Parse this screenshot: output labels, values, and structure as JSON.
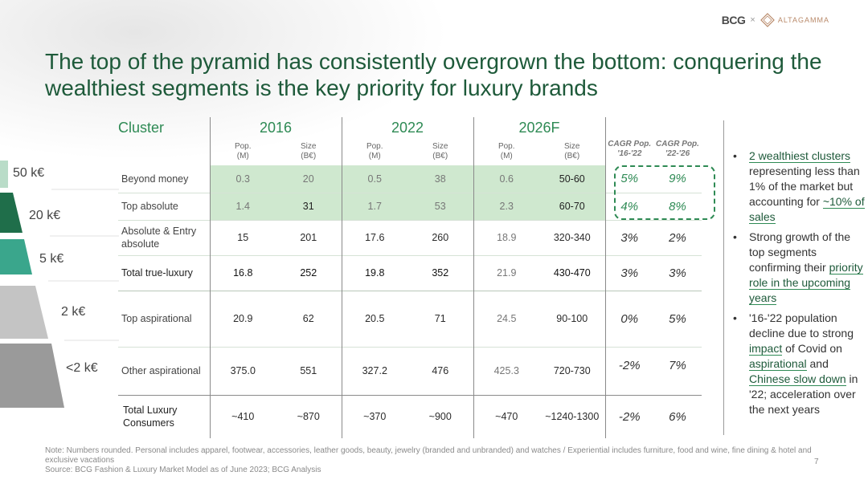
{
  "logos": {
    "bcg": "BCG",
    "times": "×",
    "altagamma": "ALTAGAMMA"
  },
  "title": "The top of the pyramid has consistently overgrown the bottom: conquering the wealthiest segments is the key priority for luxury brands",
  "pyramid": [
    {
      "label": "50 k€",
      "color": "#b9dcc8"
    },
    {
      "label": "20 k€",
      "color": "#1f6e4a"
    },
    {
      "label": "5 k€",
      "color": "#3aa68c"
    },
    {
      "label": "2 k€",
      "color": "#c4c4c4"
    },
    {
      "label": "<2 k€",
      "color": "#9a9a9a"
    }
  ],
  "table": {
    "cluster_header": "Cluster",
    "years": [
      "2016",
      "2022",
      "2026F"
    ],
    "pop_header": "Pop.",
    "pop_unit": "(M)",
    "size_header": "Size",
    "size_unit": "(B€)",
    "cagr1": "CAGR Pop. '16-'22",
    "cagr2": "CAGR Pop. '22-'26",
    "rows": [
      {
        "label": "Beyond money",
        "v": [
          "0.3",
          "20",
          "0.5",
          "38",
          "0.6",
          "50-60"
        ],
        "c1": "5%",
        "c2": "9%"
      },
      {
        "label": "Top absolute",
        "v": [
          "1.4",
          "31",
          "1.7",
          "53",
          "2.3",
          "60-70"
        ],
        "c1": "4%",
        "c2": "8%"
      },
      {
        "label": "Absolute & Entry absolute",
        "v": [
          "15",
          "201",
          "17.6",
          "260",
          "18.9",
          "320-340"
        ],
        "c1": "3%",
        "c2": "2%"
      },
      {
        "label": "Total true-luxury",
        "v": [
          "16.8",
          "252",
          "19.8",
          "352",
          "21.9",
          "430-470"
        ],
        "c1": "3%",
        "c2": "3%"
      },
      {
        "label": "Top aspirational",
        "v": [
          "20.9",
          "62",
          "20.5",
          "71",
          "24.5",
          "90-100"
        ],
        "c1": "0%",
        "c2": "5%"
      },
      {
        "label": "Other aspirational",
        "v": [
          "375.0",
          "551",
          "327.2",
          "476",
          "425.3",
          "720-730"
        ],
        "c1": "-2%",
        "c2": "7%"
      },
      {
        "label": "Total Luxury Consumers",
        "v": [
          "~410",
          "~870",
          "~370",
          "~900",
          "~470",
          "~1240-1300"
        ],
        "c1": "-2%",
        "c2": "6%"
      }
    ]
  },
  "bullets": [
    {
      "a": "2 wealthiest clusters",
      "b": " representing less than 1% of the market but accounting for ",
      "c": "~10% of sales",
      "d": ""
    },
    {
      "a": "Strong growth of the top segments confirming their ",
      "b": "priority role in the upcoming years",
      "c": "",
      "d": ""
    },
    {
      "a": "'16-'22 population decline due to strong ",
      "b": "impact",
      "c": " of Covid on ",
      "d": "aspirational",
      "e": " and ",
      "f": "Chinese slow down",
      "g": " in '22; acceleration over the next years"
    }
  ],
  "note": "Note: Numbers rounded. Personal includes apparel, footwear, accessories, leather goods, beauty, jewelry (branded and unbranded) and watches / Experiential includes furniture, food and wine, fine dining & hotel and exclusive vacations",
  "source": "Source: BCG Fashion & Luxury Market Model as of June 2023; BCG Analysis",
  "page": "7"
}
